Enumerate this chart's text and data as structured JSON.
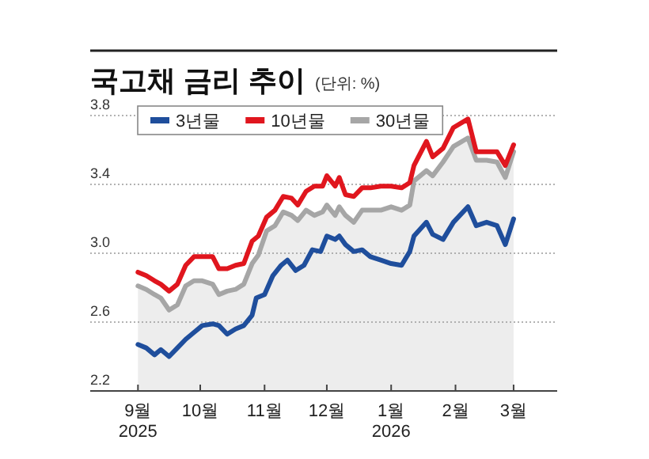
{
  "chart_data": {
    "type": "line",
    "title": "국고채 금리 추이",
    "subtitle": "(단위: %)",
    "series": [
      {
        "name": "3년물",
        "color": "#1f4e9c",
        "x": [
          "2025-09-01",
          "2025-09-05",
          "2025-09-09",
          "2025-09-12",
          "2025-09-16",
          "2025-09-20",
          "2025-09-24",
          "2025-09-28",
          "2025-10-02",
          "2025-10-07",
          "2025-10-10",
          "2025-10-14",
          "2025-10-18",
          "2025-10-22",
          "2025-10-26",
          "2025-10-28",
          "2025-11-01",
          "2025-11-05",
          "2025-11-09",
          "2025-11-12",
          "2025-11-16",
          "2025-11-20",
          "2025-11-24",
          "2025-11-28",
          "2025-12-01",
          "2025-12-05",
          "2025-12-07",
          "2025-12-10",
          "2025-12-14",
          "2025-12-18",
          "2025-12-22",
          "2025-12-27",
          "2026-01-01",
          "2026-01-06",
          "2026-01-10",
          "2026-01-12",
          "2026-01-18",
          "2026-01-21",
          "2026-01-26",
          "2026-01-31",
          "2026-02-07",
          "2026-02-11",
          "2026-02-16",
          "2026-02-21",
          "2026-02-25",
          "2026-03-01"
        ],
        "values": [
          2.47,
          2.45,
          2.41,
          2.44,
          2.4,
          2.45,
          2.5,
          2.54,
          2.58,
          2.59,
          2.58,
          2.53,
          2.56,
          2.58,
          2.64,
          2.74,
          2.76,
          2.87,
          2.93,
          2.96,
          2.9,
          2.93,
          3.02,
          3.01,
          3.1,
          3.08,
          3.1,
          3.05,
          3.01,
          3.02,
          2.98,
          2.96,
          2.94,
          2.93,
          3.01,
          3.1,
          3.18,
          3.11,
          3.08,
          3.18,
          3.27,
          3.16,
          3.18,
          3.16,
          3.05,
          3.2
        ]
      },
      {
        "name": "10년물",
        "color": "#e0161e",
        "x": [
          "2025-09-01",
          "2025-09-05",
          "2025-09-09",
          "2025-09-12",
          "2025-09-16",
          "2025-09-20",
          "2025-09-24",
          "2025-09-28",
          "2025-10-02",
          "2025-10-07",
          "2025-10-10",
          "2025-10-14",
          "2025-10-18",
          "2025-10-22",
          "2025-10-26",
          "2025-10-29",
          "2025-11-02",
          "2025-11-06",
          "2025-11-10",
          "2025-11-14",
          "2025-11-17",
          "2025-11-21",
          "2025-11-25",
          "2025-11-29",
          "2025-12-01",
          "2025-12-05",
          "2025-12-07",
          "2025-12-10",
          "2025-12-14",
          "2025-12-18",
          "2025-12-22",
          "2025-12-27",
          "2026-01-01",
          "2026-01-06",
          "2026-01-10",
          "2026-01-12",
          "2026-01-18",
          "2026-01-21",
          "2026-01-26",
          "2026-01-31",
          "2026-02-07",
          "2026-02-11",
          "2026-02-16",
          "2026-02-21",
          "2026-02-25",
          "2026-03-01"
        ],
        "values": [
          2.89,
          2.87,
          2.84,
          2.82,
          2.78,
          2.82,
          2.93,
          2.98,
          2.98,
          2.98,
          2.91,
          2.91,
          2.93,
          2.94,
          3.07,
          3.1,
          3.21,
          3.25,
          3.33,
          3.32,
          3.28,
          3.36,
          3.39,
          3.39,
          3.45,
          3.39,
          3.44,
          3.34,
          3.33,
          3.38,
          3.38,
          3.39,
          3.39,
          3.38,
          3.41,
          3.51,
          3.65,
          3.56,
          3.61,
          3.73,
          3.78,
          3.59,
          3.59,
          3.59,
          3.51,
          3.63
        ]
      },
      {
        "name": "30년물",
        "color": "#a6a6a6",
        "type": "area",
        "x": [
          "2025-09-01",
          "2025-09-05",
          "2025-09-09",
          "2025-09-12",
          "2025-09-16",
          "2025-09-20",
          "2025-09-24",
          "2025-09-28",
          "2025-10-02",
          "2025-10-07",
          "2025-10-10",
          "2025-10-14",
          "2025-10-18",
          "2025-10-22",
          "2025-10-26",
          "2025-10-29",
          "2025-11-02",
          "2025-11-06",
          "2025-11-10",
          "2025-11-14",
          "2025-11-17",
          "2025-11-21",
          "2025-11-25",
          "2025-11-29",
          "2025-12-01",
          "2025-12-05",
          "2025-12-07",
          "2025-12-10",
          "2025-12-14",
          "2025-12-18",
          "2025-12-22",
          "2025-12-27",
          "2026-01-01",
          "2026-01-06",
          "2026-01-10",
          "2026-01-12",
          "2026-01-18",
          "2026-01-21",
          "2026-01-26",
          "2026-01-31",
          "2026-02-07",
          "2026-02-11",
          "2026-02-16",
          "2026-02-21",
          "2026-02-25",
          "2026-03-01"
        ],
        "values": [
          2.81,
          2.79,
          2.76,
          2.74,
          2.67,
          2.7,
          2.81,
          2.84,
          2.84,
          2.82,
          2.76,
          2.78,
          2.79,
          2.82,
          2.94,
          2.99,
          3.13,
          3.16,
          3.24,
          3.22,
          3.19,
          3.25,
          3.22,
          3.24,
          3.28,
          3.22,
          3.27,
          3.22,
          3.18,
          3.25,
          3.25,
          3.25,
          3.27,
          3.25,
          3.28,
          3.42,
          3.48,
          3.45,
          3.53,
          3.62,
          3.67,
          3.54,
          3.54,
          3.53,
          3.44,
          3.59
        ]
      }
    ],
    "xlim": [
      "2025-08-09",
      "2026-03-22"
    ],
    "xticks": [
      {
        "value": "2025-09-01",
        "label": "9월\n2025"
      },
      {
        "value": "2025-10-01",
        "label": "10월"
      },
      {
        "value": "2025-11-01",
        "label": "11월"
      },
      {
        "value": "2025-12-01",
        "label": "12월"
      },
      {
        "value": "2026-01-01",
        "label": "1월\n2026"
      },
      {
        "value": "2026-02-01",
        "label": "2월"
      },
      {
        "value": "2026-03-01",
        "label": "3월"
      }
    ],
    "ylim": [
      2.2,
      3.8
    ],
    "yticks": [
      {
        "value": 2.2,
        "label": "2.2"
      },
      {
        "value": 2.6,
        "label": "2.6"
      },
      {
        "value": 3.0,
        "label": "3.0"
      },
      {
        "value": 3.4,
        "label": "3.4"
      },
      {
        "value": 3.8,
        "label": "3.8"
      }
    ],
    "grid": "y",
    "legend": "top"
  }
}
